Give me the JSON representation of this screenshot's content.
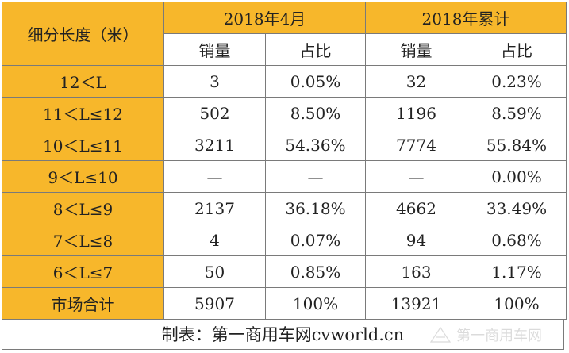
{
  "table": {
    "corner_header": "细分长度（米）",
    "group_headers": [
      "2018年4月",
      "2018年累计"
    ],
    "sub_headers": [
      "销量",
      "占比",
      "销量",
      "占比"
    ],
    "rows": [
      {
        "label": "12＜L",
        "cells": [
          "3",
          "0.05%",
          "32",
          "0.23%"
        ]
      },
      {
        "label": "11＜L≤12",
        "cells": [
          "502",
          "8.50%",
          "1196",
          "8.59%"
        ]
      },
      {
        "label": "10＜L≤11",
        "cells": [
          "3211",
          "54.36%",
          "7774",
          "55.84%"
        ]
      },
      {
        "label": "9＜L≤10",
        "cells": [
          "—",
          "—",
          "—",
          "0.00%"
        ]
      },
      {
        "label": "8＜L≤9",
        "cells": [
          "2137",
          "36.18%",
          "4662",
          "33.49%"
        ]
      },
      {
        "label": "7＜L≤8",
        "cells": [
          "4",
          "0.07%",
          "94",
          "0.68%"
        ]
      },
      {
        "label": "6＜L≤7",
        "cells": [
          "50",
          "0.85%",
          "163",
          "1.17%"
        ]
      },
      {
        "label": "市场合计",
        "cells": [
          "5907",
          "100%",
          "13921",
          "100%"
        ]
      }
    ]
  },
  "footer": {
    "credit": "制表：第一商用车网cvworld.cn"
  },
  "watermark": {
    "text": "第一商用车网",
    "icon": "cvworld-logo-icon"
  },
  "colors": {
    "header_bg": "#f7b72b",
    "border": "#7a7a7a"
  }
}
